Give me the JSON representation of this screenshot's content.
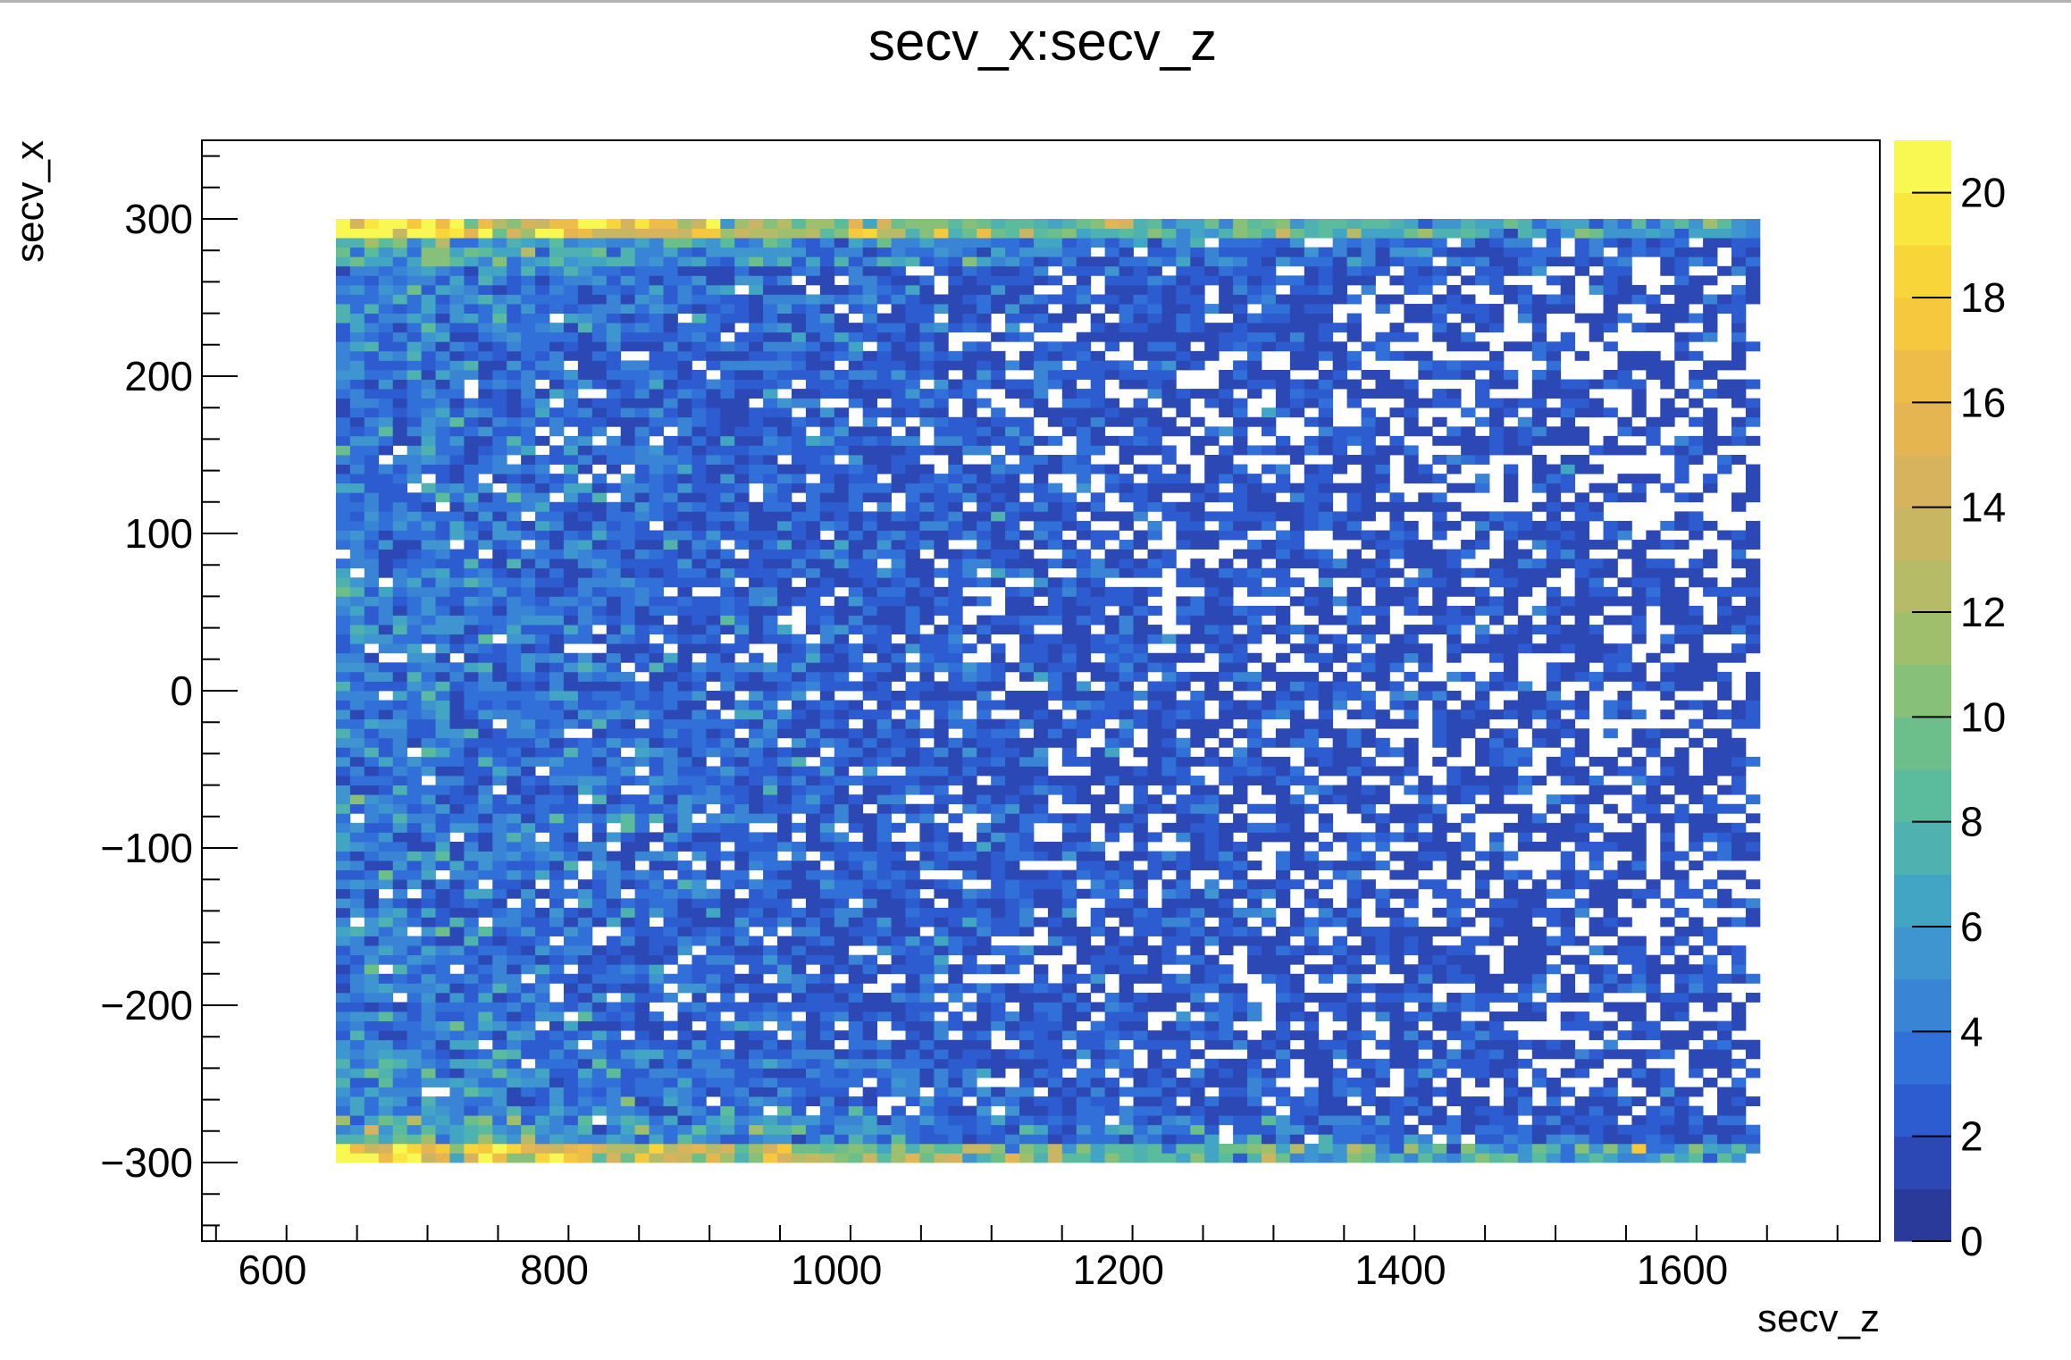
{
  "chart_data": {
    "type": "heatmap",
    "title": "secv_x:secv_z",
    "xlabel": "secv_z",
    "ylabel": "secv_x",
    "xlim": [
      550,
      1740
    ],
    "ylim": [
      -350,
      350
    ],
    "x_ticks": [
      600,
      800,
      1000,
      1200,
      1400,
      1600
    ],
    "y_ticks": [
      -300,
      -200,
      -100,
      0,
      100,
      200,
      300
    ],
    "x_tick_labels": [
      "600",
      "800",
      "1000",
      "1200",
      "1400",
      "1600"
    ],
    "y_tick_labels": [
      "−300",
      "−200",
      "−100",
      "0",
      "100",
      "200",
      "300"
    ],
    "data_x_range": [
      645,
      1655
    ],
    "data_y_range": [
      -300,
      300
    ],
    "bins_x": 100,
    "bins_y": 100,
    "z_range": [
      0,
      21
    ],
    "colorbar_ticks": [
      0,
      2,
      4,
      6,
      8,
      10,
      12,
      14,
      16,
      18,
      20
    ],
    "colorbar_tick_labels": [
      "0",
      "2",
      "4",
      "6",
      "8",
      "10",
      "12",
      "14",
      "16",
      "18",
      "20"
    ],
    "colormap": "parula",
    "colors": [
      "#2a3a9a",
      "#2c48b4",
      "#2c5cd0",
      "#3070d8",
      "#3a84d6",
      "#3e95cf",
      "#42a5c3",
      "#4fb2b0",
      "#5bbb9d",
      "#6cbf8a",
      "#86c079",
      "#a0bf6d",
      "#b6bb68",
      "#c8b663",
      "#d6b35c",
      "#e4b550",
      "#eebd48",
      "#f5c83e",
      "#f8d63a",
      "#f9e63f",
      "#f9f752"
    ],
    "pattern": {
      "description": "Counts densest at low secv_z and along both edges secv_x = +300 and secv_x = -300; sparse (many empty bins) at high secv_z and in the center.",
      "edge_peak_value": 20
    }
  }
}
